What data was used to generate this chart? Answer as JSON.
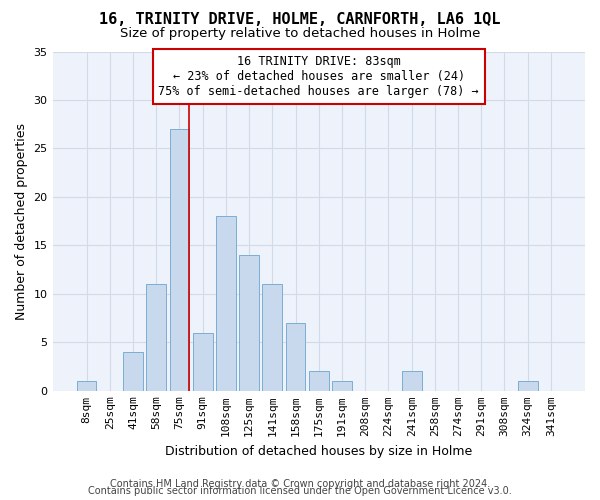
{
  "title": "16, TRINITY DRIVE, HOLME, CARNFORTH, LA6 1QL",
  "subtitle": "Size of property relative to detached houses in Holme",
  "xlabel": "Distribution of detached houses by size in Holme",
  "ylabel": "Number of detached properties",
  "bar_color": "#c8d8ed",
  "bar_edge_color": "#7badd4",
  "categories": [
    "8sqm",
    "25sqm",
    "41sqm",
    "58sqm",
    "75sqm",
    "91sqm",
    "108sqm",
    "125sqm",
    "141sqm",
    "158sqm",
    "175sqm",
    "191sqm",
    "208sqm",
    "224sqm",
    "241sqm",
    "258sqm",
    "274sqm",
    "291sqm",
    "308sqm",
    "324sqm",
    "341sqm"
  ],
  "values": [
    1,
    0,
    4,
    11,
    27,
    6,
    18,
    14,
    11,
    7,
    2,
    1,
    0,
    0,
    2,
    0,
    0,
    0,
    0,
    1,
    0
  ],
  "ylim": [
    0,
    35
  ],
  "yticks": [
    0,
    5,
    10,
    15,
    20,
    25,
    30,
    35
  ],
  "annotation_line1": "16 TRINITY DRIVE: 83sqm",
  "annotation_line2": "← 23% of detached houses are smaller (24)",
  "annotation_line3": "75% of semi-detached houses are larger (78) →",
  "subject_bar_index": 4,
  "subject_line_color": "#cc0000",
  "footer1": "Contains HM Land Registry data © Crown copyright and database right 2024.",
  "footer2": "Contains public sector information licensed under the Open Government Licence v3.0.",
  "background_color": "#ffffff",
  "plot_bg_color": "#eef3fb",
  "grid_color": "#d0dae8",
  "title_fontsize": 11,
  "subtitle_fontsize": 9.5,
  "axis_label_fontsize": 9,
  "tick_fontsize": 8,
  "footer_fontsize": 7
}
